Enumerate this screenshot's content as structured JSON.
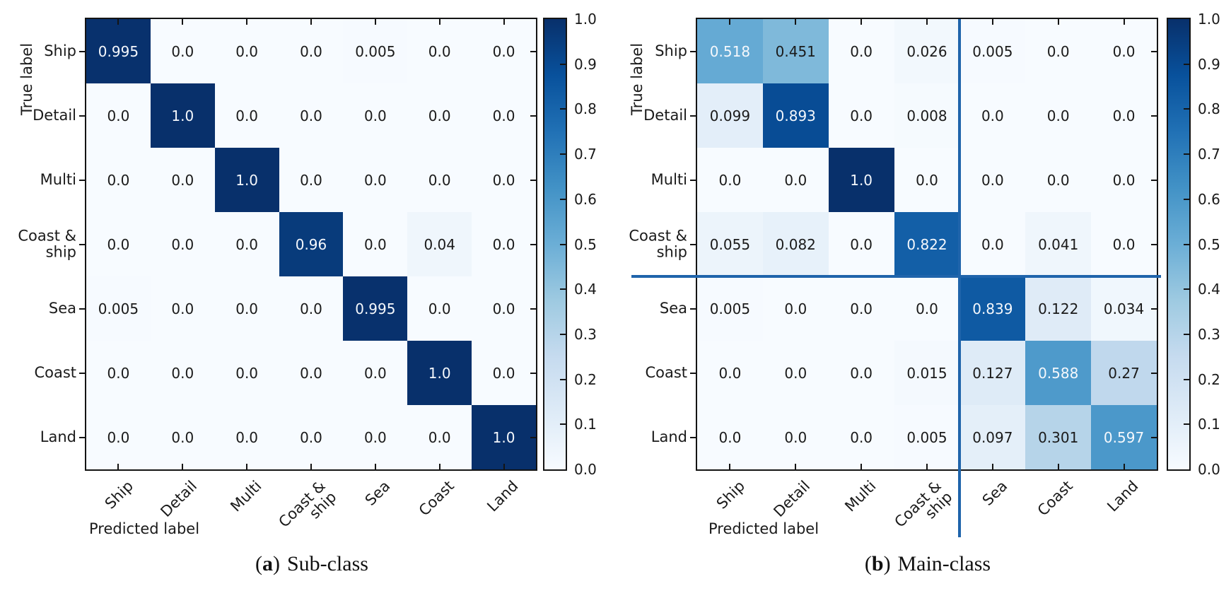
{
  "colors": {
    "colormap": "Blues",
    "colormap_stops": [
      "#f7fbff",
      "#deebf7",
      "#c6dbef",
      "#9ecae1",
      "#6baed6",
      "#4292c6",
      "#2171b5",
      "#08519c",
      "#08306b"
    ],
    "divider_line": "#1f64ab",
    "axis_line": "#141414",
    "cell_text_dark": "#1a1a1a",
    "cell_text_light": "#f5f8fc"
  },
  "chart_data": [
    {
      "type": "heatmap",
      "caption": "(a) Sub-class",
      "caption_parts": {
        "open": "(",
        "letter": "a",
        "close": ")",
        "text": "Sub-class"
      },
      "xlabel": "Predicted label",
      "ylabel": "True label",
      "row_labels": [
        "Ship",
        "Detail",
        "Multi",
        "Coast &\nship",
        "Sea",
        "Coast",
        "Land"
      ],
      "col_labels": [
        "Ship",
        "Detail",
        "Multi",
        "Coast &\nship",
        "Sea",
        "Coast",
        "Land"
      ],
      "values": [
        [
          0.995,
          0.0,
          0.0,
          0.0,
          0.005,
          0.0,
          0.0
        ],
        [
          0.0,
          1.0,
          0.0,
          0.0,
          0.0,
          0.0,
          0.0
        ],
        [
          0.0,
          0.0,
          1.0,
          0.0,
          0.0,
          0.0,
          0.0
        ],
        [
          0.0,
          0.0,
          0.0,
          0.96,
          0.0,
          0.04,
          0.0
        ],
        [
          0.005,
          0.0,
          0.0,
          0.0,
          0.995,
          0.0,
          0.0
        ],
        [
          0.0,
          0.0,
          0.0,
          0.0,
          0.0,
          1.0,
          0.0
        ],
        [
          0.0,
          0.0,
          0.0,
          0.0,
          0.0,
          0.0,
          1.0
        ]
      ],
      "value_labels": [
        [
          "0.995",
          "0.0",
          "0.0",
          "0.0",
          "0.005",
          "0.0",
          "0.0"
        ],
        [
          "0.0",
          "1.0",
          "0.0",
          "0.0",
          "0.0",
          "0.0",
          "0.0"
        ],
        [
          "0.0",
          "0.0",
          "1.0",
          "0.0",
          "0.0",
          "0.0",
          "0.0"
        ],
        [
          "0.0",
          "0.0",
          "0.0",
          "0.96",
          "0.0",
          "0.04",
          "0.0"
        ],
        [
          "0.005",
          "0.0",
          "0.0",
          "0.0",
          "0.995",
          "0.0",
          "0.0"
        ],
        [
          "0.0",
          "0.0",
          "0.0",
          "0.0",
          "0.0",
          "1.0",
          "0.0"
        ],
        [
          "0.0",
          "0.0",
          "0.0",
          "0.0",
          "0.0",
          "0.0",
          "1.0"
        ]
      ],
      "colorbar": {
        "vmin": 0.0,
        "vmax": 1.0,
        "tick_labels": [
          "1.0",
          "0.9",
          "0.8",
          "0.7",
          "0.6",
          "0.5",
          "0.4",
          "0.3",
          "0.2",
          "0.1",
          "0.0"
        ]
      },
      "group_dividers": null
    },
    {
      "type": "heatmap",
      "caption": "(b) Main-class",
      "caption_parts": {
        "open": "(",
        "letter": "b",
        "close": ")",
        "text": "Main-class"
      },
      "xlabel": "Predicted label",
      "ylabel": "True label",
      "row_labels": [
        "Ship",
        "Detail",
        "Multi",
        "Coast &\nship",
        "Sea",
        "Coast",
        "Land"
      ],
      "col_labels": [
        "Ship",
        "Detail",
        "Multi",
        "Coast &\nship",
        "Sea",
        "Coast",
        "Land"
      ],
      "values": [
        [
          0.518,
          0.451,
          0.0,
          0.026,
          0.005,
          0.0,
          0.0
        ],
        [
          0.099,
          0.893,
          0.0,
          0.008,
          0.0,
          0.0,
          0.0
        ],
        [
          0.0,
          0.0,
          1.0,
          0.0,
          0.0,
          0.0,
          0.0
        ],
        [
          0.055,
          0.082,
          0.0,
          0.822,
          0.0,
          0.041,
          0.0
        ],
        [
          0.005,
          0.0,
          0.0,
          0.0,
          0.839,
          0.122,
          0.034
        ],
        [
          0.0,
          0.0,
          0.0,
          0.015,
          0.127,
          0.588,
          0.27
        ],
        [
          0.0,
          0.0,
          0.0,
          0.005,
          0.097,
          0.301,
          0.597
        ]
      ],
      "value_labels": [
        [
          "0.518",
          "0.451",
          "0.0",
          "0.026",
          "0.005",
          "0.0",
          "0.0"
        ],
        [
          "0.099",
          "0.893",
          "0.0",
          "0.008",
          "0.0",
          "0.0",
          "0.0"
        ],
        [
          "0.0",
          "0.0",
          "1.0",
          "0.0",
          "0.0",
          "0.0",
          "0.0"
        ],
        [
          "0.055",
          "0.082",
          "0.0",
          "0.822",
          "0.0",
          "0.041",
          "0.0"
        ],
        [
          "0.005",
          "0.0",
          "0.0",
          "0.0",
          "0.839",
          "0.122",
          "0.034"
        ],
        [
          "0.0",
          "0.0",
          "0.0",
          "0.015",
          "0.127",
          "0.588",
          "0.27"
        ],
        [
          "0.0",
          "0.0",
          "0.0",
          "0.005",
          "0.097",
          "0.301",
          "0.597"
        ]
      ],
      "colorbar": {
        "vmin": 0.0,
        "vmax": 1.0,
        "tick_labels": [
          "1.0",
          "0.9",
          "0.8",
          "0.7",
          "0.6",
          "0.5",
          "0.4",
          "0.3",
          "0.2",
          "0.1",
          "0.0"
        ]
      },
      "group_dividers": {
        "after_row": 4,
        "after_col": 4
      }
    }
  ]
}
